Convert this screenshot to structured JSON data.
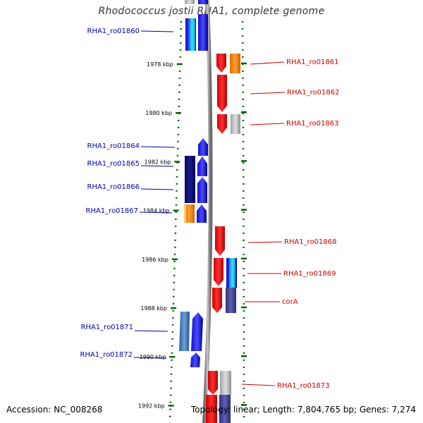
{
  "title": "Rhodococcus jostii RHA1, complete genome",
  "footer": {
    "accession": "Accession: NC_008268",
    "summary": "Topology: linear; Length: 7,804,765 bp; Genes: 7,274"
  },
  "colors": {
    "label_left": "#0000aa",
    "label_right": "#cc0000",
    "tick": "#006400",
    "backbone": "#808080"
  },
  "ticks": [
    {
      "label": "1978 kbp",
      "kbp": 1978
    },
    {
      "label": "1980 kbp",
      "kbp": 1980
    },
    {
      "label": "1982 kbp",
      "kbp": 1982
    },
    {
      "label": "1984 kbp",
      "kbp": 1984
    },
    {
      "label": "1986 kbp",
      "kbp": 1986
    },
    {
      "label": "1988 kbp",
      "kbp": 1988
    },
    {
      "label": "1990 kbp",
      "kbp": 1990
    },
    {
      "label": "1992 kbp",
      "kbp": 1992
    }
  ],
  "genes_left": [
    {
      "label": "RHA1_ro01860"
    },
    {
      "label": "RHA1_ro01864"
    },
    {
      "label": "RHA1_ro01865"
    },
    {
      "label": "RHA1_ro01866"
    },
    {
      "label": "RHA1_ro01867"
    },
    {
      "label": "RHA1_ro01871"
    },
    {
      "label": "RHA1_ro01872"
    }
  ],
  "genes_right": [
    {
      "label": "RHA1_ro01861"
    },
    {
      "label": "RHA1_ro01862"
    },
    {
      "label": "RHA1_ro01863"
    },
    {
      "label": "RHA1_ro01868"
    },
    {
      "label": "RHA1_ro01869"
    },
    {
      "label": "corA"
    },
    {
      "label": "RHA1_ro01873"
    }
  ]
}
